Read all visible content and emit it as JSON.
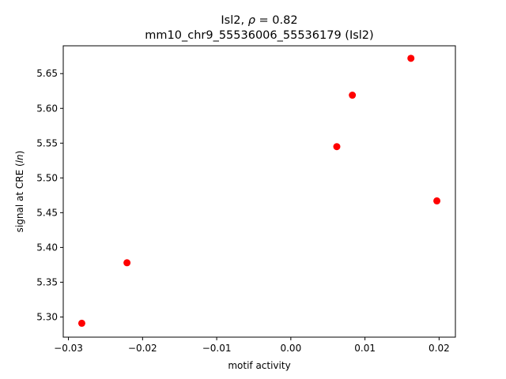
{
  "chart_data": {
    "type": "scatter",
    "title_line1_prefix": "Isl2, ",
    "title_line1_rho": "ρ",
    "title_line1_suffix": " = 0.82",
    "title_line2": "mm10_chr9_55536006_55536179 (Isl2)",
    "xlabel": "motif activity",
    "ylabel_prefix": "signal at CRE (",
    "ylabel_italic": "ln",
    "ylabel_suffix": ")",
    "xlim": [
      -0.0307,
      0.0222
    ],
    "ylim": [
      5.271,
      5.69
    ],
    "x_ticks": [
      -0.03,
      -0.02,
      -0.01,
      0.0,
      0.01,
      0.02
    ],
    "x_tick_labels": [
      "−0.03",
      "−0.02",
      "−0.01",
      "0.00",
      "0.01",
      "0.02"
    ],
    "y_ticks": [
      5.3,
      5.35,
      5.4,
      5.45,
      5.5,
      5.55,
      5.6,
      5.65
    ],
    "y_tick_labels": [
      "5.30",
      "5.35",
      "5.40",
      "5.45",
      "5.50",
      "5.55",
      "5.60",
      "5.65"
    ],
    "marker_color": "#ff0000",
    "grid": false,
    "points": [
      {
        "x": -0.0282,
        "y": 5.291
      },
      {
        "x": -0.0221,
        "y": 5.378
      },
      {
        "x": 0.0062,
        "y": 5.545
      },
      {
        "x": 0.0083,
        "y": 5.619
      },
      {
        "x": 0.0162,
        "y": 5.672
      },
      {
        "x": 0.0197,
        "y": 5.467
      }
    ]
  }
}
